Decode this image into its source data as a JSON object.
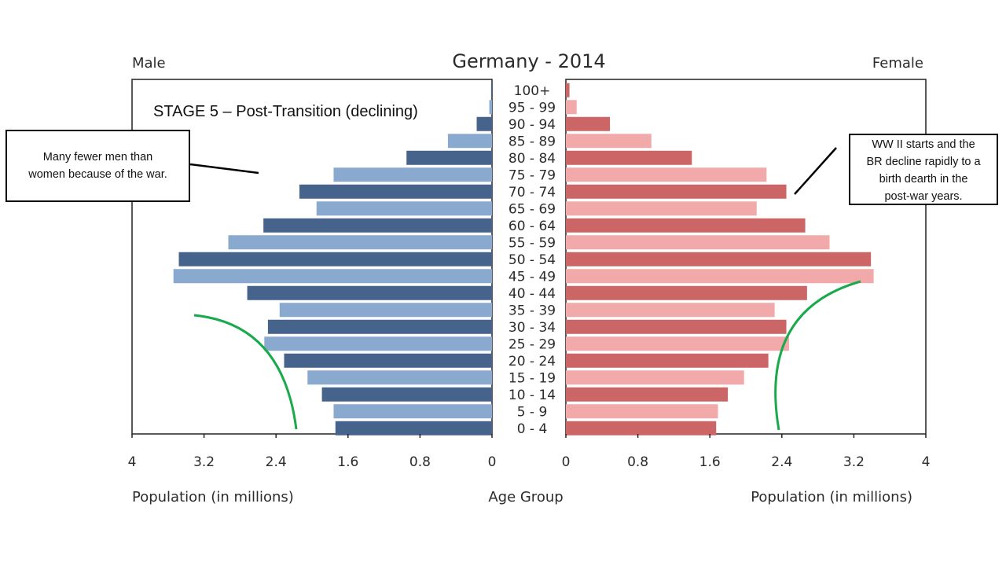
{
  "chart_data": {
    "type": "bar",
    "title": "Germany - 2014",
    "left_label": "Male",
    "right_label": "Female",
    "xlabel_left": "Population (in millions)",
    "xlabel_center": "Age Group",
    "xlabel_right": "Population (in millions)",
    "xlim": [
      0,
      4
    ],
    "x_ticks": [
      "4",
      "3.2",
      "2.4",
      "1.6",
      "0.8",
      "0"
    ],
    "x_ticks_right": [
      "0",
      "0.8",
      "1.6",
      "2.4",
      "3.2",
      "4"
    ],
    "categories": [
      "100+",
      "95 - 99",
      "90 - 94",
      "85 - 89",
      "80 - 84",
      "75 - 79",
      "70 - 74",
      "65 - 69",
      "60 - 64",
      "55 - 59",
      "50 - 54",
      "45 - 49",
      "40 - 44",
      "35 - 39",
      "30 - 34",
      "25 - 29",
      "20 - 24",
      "15 - 19",
      "10 - 14",
      "5 - 9",
      "0 - 4"
    ],
    "series": [
      {
        "name": "Male",
        "values": [
          0.01,
          0.03,
          0.17,
          0.49,
          0.95,
          1.76,
          2.14,
          1.95,
          2.54,
          2.93,
          3.48,
          3.54,
          2.72,
          2.36,
          2.49,
          2.53,
          2.31,
          2.05,
          1.89,
          1.76,
          1.74
        ]
      },
      {
        "name": "Female",
        "values": [
          0.04,
          0.12,
          0.49,
          0.95,
          1.4,
          2.23,
          2.45,
          2.12,
          2.66,
          2.93,
          3.39,
          3.42,
          2.68,
          2.32,
          2.45,
          2.48,
          2.25,
          1.98,
          1.8,
          1.69,
          1.67
        ]
      }
    ],
    "colors": {
      "male_dark": "#46638c",
      "male_light": "#8aa9cf",
      "female_dark": "#cc6565",
      "female_light": "#f1aaa9",
      "curve": "#1aaa4d"
    },
    "grid": false
  },
  "annotations": {
    "stage_text": "STAGE 5 – Post-Transition (declining)",
    "left_box": [
      "Many fewer men than",
      "women because of the war."
    ],
    "right_box": [
      "WW II starts and the",
      "BR decline rapidly to a",
      "birth dearth in the",
      "post-war years."
    ]
  }
}
